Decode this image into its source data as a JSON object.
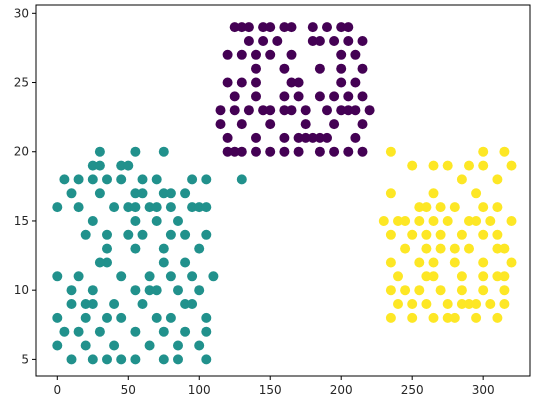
{
  "chart_data": {
    "type": "scatter",
    "title": "",
    "xlabel": "",
    "ylabel": "",
    "xlim": [
      -15,
      333
    ],
    "ylim": [
      3.8,
      30.6
    ],
    "xticks": [
      0,
      50,
      100,
      150,
      200,
      250,
      300
    ],
    "yticks": [
      5,
      10,
      15,
      20,
      25,
      30
    ],
    "grid": false,
    "legend": "none",
    "series": [
      {
        "color": "#440154",
        "points": [
          [
            125,
            29
          ],
          [
            130,
            29
          ],
          [
            135,
            29
          ],
          [
            145,
            29
          ],
          [
            150,
            29
          ],
          [
            160,
            29
          ],
          [
            165,
            29
          ],
          [
            180,
            29
          ],
          [
            190,
            29
          ],
          [
            200,
            29
          ],
          [
            205,
            29
          ],
          [
            135,
            28
          ],
          [
            145,
            28
          ],
          [
            155,
            28
          ],
          [
            180,
            28
          ],
          [
            185,
            28
          ],
          [
            195,
            28
          ],
          [
            205,
            28
          ],
          [
            215,
            28
          ],
          [
            120,
            27
          ],
          [
            130,
            27
          ],
          [
            140,
            27
          ],
          [
            150,
            27
          ],
          [
            165,
            27
          ],
          [
            200,
            27
          ],
          [
            210,
            27
          ],
          [
            140,
            26
          ],
          [
            160,
            26
          ],
          [
            185,
            26
          ],
          [
            200,
            26
          ],
          [
            215,
            26
          ],
          [
            120,
            25
          ],
          [
            130,
            25
          ],
          [
            140,
            25
          ],
          [
            165,
            25
          ],
          [
            170,
            25
          ],
          [
            200,
            25
          ],
          [
            210,
            25
          ],
          [
            125,
            24
          ],
          [
            140,
            24
          ],
          [
            160,
            24
          ],
          [
            170,
            24
          ],
          [
            185,
            24
          ],
          [
            195,
            24
          ],
          [
            205,
            24
          ],
          [
            215,
            24
          ],
          [
            115,
            23
          ],
          [
            125,
            23
          ],
          [
            135,
            23
          ],
          [
            145,
            23
          ],
          [
            150,
            23
          ],
          [
            160,
            23
          ],
          [
            165,
            23
          ],
          [
            175,
            23
          ],
          [
            190,
            23
          ],
          [
            200,
            23
          ],
          [
            205,
            23
          ],
          [
            210,
            23
          ],
          [
            220,
            23
          ],
          [
            115,
            22
          ],
          [
            130,
            22
          ],
          [
            150,
            22
          ],
          [
            175,
            22
          ],
          [
            195,
            22
          ],
          [
            215,
            22
          ],
          [
            120,
            21
          ],
          [
            140,
            21
          ],
          [
            160,
            21
          ],
          [
            180,
            21
          ],
          [
            210,
            21
          ],
          [
            150,
            20
          ],
          [
            160,
            20
          ],
          [
            170,
            20
          ],
          [
            185,
            20
          ],
          [
            195,
            20
          ],
          [
            205,
            20
          ],
          [
            215,
            20
          ],
          [
            120,
            20
          ],
          [
            125,
            20
          ],
          [
            130,
            20
          ],
          [
            140,
            20
          ],
          [
            170,
            21
          ],
          [
            175,
            21
          ],
          [
            185,
            21
          ],
          [
            190,
            21
          ]
        ]
      },
      {
        "color": "#21918c",
        "points": [
          [
            30,
            20
          ],
          [
            55,
            20
          ],
          [
            75,
            20
          ],
          [
            25,
            19
          ],
          [
            30,
            19
          ],
          [
            45,
            19
          ],
          [
            50,
            19
          ],
          [
            5,
            18
          ],
          [
            15,
            18
          ],
          [
            25,
            18
          ],
          [
            35,
            18
          ],
          [
            45,
            18
          ],
          [
            60,
            18
          ],
          [
            70,
            18
          ],
          [
            95,
            18
          ],
          [
            105,
            18
          ],
          [
            130,
            18
          ],
          [
            10,
            17
          ],
          [
            30,
            17
          ],
          [
            55,
            17
          ],
          [
            60,
            17
          ],
          [
            75,
            17
          ],
          [
            80,
            17
          ],
          [
            90,
            17
          ],
          [
            0,
            16
          ],
          [
            15,
            16
          ],
          [
            40,
            16
          ],
          [
            50,
            16
          ],
          [
            55,
            16
          ],
          [
            65,
            16
          ],
          [
            70,
            16
          ],
          [
            80,
            16
          ],
          [
            95,
            16
          ],
          [
            100,
            16
          ],
          [
            105,
            16
          ],
          [
            25,
            15
          ],
          [
            55,
            15
          ],
          [
            70,
            15
          ],
          [
            85,
            15
          ],
          [
            20,
            14
          ],
          [
            35,
            14
          ],
          [
            50,
            14
          ],
          [
            60,
            14
          ],
          [
            80,
            14
          ],
          [
            90,
            14
          ],
          [
            105,
            14
          ],
          [
            35,
            13
          ],
          [
            55,
            13
          ],
          [
            75,
            13
          ],
          [
            100,
            13
          ],
          [
            35,
            12
          ],
          [
            75,
            12
          ],
          [
            90,
            12
          ],
          [
            30,
            12
          ],
          [
            0,
            11
          ],
          [
            15,
            11
          ],
          [
            45,
            11
          ],
          [
            65,
            11
          ],
          [
            80,
            11
          ],
          [
            95,
            11
          ],
          [
            110,
            11
          ],
          [
            10,
            10
          ],
          [
            25,
            10
          ],
          [
            55,
            10
          ],
          [
            65,
            10
          ],
          [
            70,
            10
          ],
          [
            85,
            10
          ],
          [
            100,
            10
          ],
          [
            10,
            9
          ],
          [
            20,
            9
          ],
          [
            25,
            9
          ],
          [
            40,
            9
          ],
          [
            60,
            9
          ],
          [
            90,
            9
          ],
          [
            95,
            9
          ],
          [
            0,
            8
          ],
          [
            20,
            8
          ],
          [
            35,
            8
          ],
          [
            45,
            8
          ],
          [
            70,
            8
          ],
          [
            80,
            8
          ],
          [
            105,
            8
          ],
          [
            5,
            7
          ],
          [
            15,
            7
          ],
          [
            30,
            7
          ],
          [
            55,
            7
          ],
          [
            75,
            7
          ],
          [
            90,
            7
          ],
          [
            105,
            7
          ],
          [
            0,
            6
          ],
          [
            20,
            6
          ],
          [
            40,
            6
          ],
          [
            65,
            6
          ],
          [
            85,
            6
          ],
          [
            100,
            6
          ],
          [
            10,
            5
          ],
          [
            25,
            5
          ],
          [
            35,
            5
          ],
          [
            45,
            5
          ],
          [
            55,
            5
          ],
          [
            75,
            5
          ],
          [
            85,
            5
          ],
          [
            105,
            5
          ]
        ]
      },
      {
        "color": "#fde725",
        "points": [
          [
            235,
            20
          ],
          [
            300,
            20
          ],
          [
            315,
            20
          ],
          [
            250,
            19
          ],
          [
            265,
            19
          ],
          [
            275,
            19
          ],
          [
            290,
            19
          ],
          [
            300,
            19
          ],
          [
            320,
            19
          ],
          [
            285,
            18
          ],
          [
            310,
            18
          ],
          [
            235,
            17
          ],
          [
            265,
            17
          ],
          [
            295,
            17
          ],
          [
            255,
            16
          ],
          [
            260,
            16
          ],
          [
            270,
            16
          ],
          [
            280,
            16
          ],
          [
            300,
            16
          ],
          [
            310,
            16
          ],
          [
            230,
            15
          ],
          [
            240,
            15
          ],
          [
            245,
            15
          ],
          [
            255,
            15
          ],
          [
            265,
            15
          ],
          [
            275,
            15
          ],
          [
            290,
            15
          ],
          [
            295,
            15
          ],
          [
            305,
            15
          ],
          [
            320,
            15
          ],
          [
            235,
            14
          ],
          [
            250,
            14
          ],
          [
            260,
            14
          ],
          [
            270,
            14
          ],
          [
            285,
            14
          ],
          [
            300,
            14
          ],
          [
            310,
            14
          ],
          [
            245,
            13
          ],
          [
            260,
            13
          ],
          [
            270,
            13
          ],
          [
            280,
            13
          ],
          [
            290,
            13
          ],
          [
            310,
            13
          ],
          [
            315,
            13
          ],
          [
            235,
            12
          ],
          [
            255,
            12
          ],
          [
            265,
            12
          ],
          [
            280,
            12
          ],
          [
            300,
            12
          ],
          [
            320,
            12
          ],
          [
            240,
            11
          ],
          [
            265,
            11
          ],
          [
            285,
            11
          ],
          [
            300,
            11
          ],
          [
            310,
            11
          ],
          [
            315,
            11
          ],
          [
            260,
            11
          ],
          [
            235,
            10
          ],
          [
            245,
            10
          ],
          [
            270,
            10
          ],
          [
            285,
            10
          ],
          [
            300,
            10
          ],
          [
            315,
            10
          ],
          [
            240,
            9
          ],
          [
            250,
            9
          ],
          [
            260,
            9
          ],
          [
            275,
            9
          ],
          [
            290,
            9
          ],
          [
            305,
            9
          ],
          [
            315,
            9
          ],
          [
            255,
            10
          ],
          [
            235,
            8
          ],
          [
            250,
            8
          ],
          [
            265,
            8
          ],
          [
            275,
            8
          ],
          [
            280,
            8
          ],
          [
            295,
            8
          ],
          [
            310,
            8
          ],
          [
            285,
            9
          ],
          [
            295,
            9
          ]
        ]
      }
    ]
  }
}
